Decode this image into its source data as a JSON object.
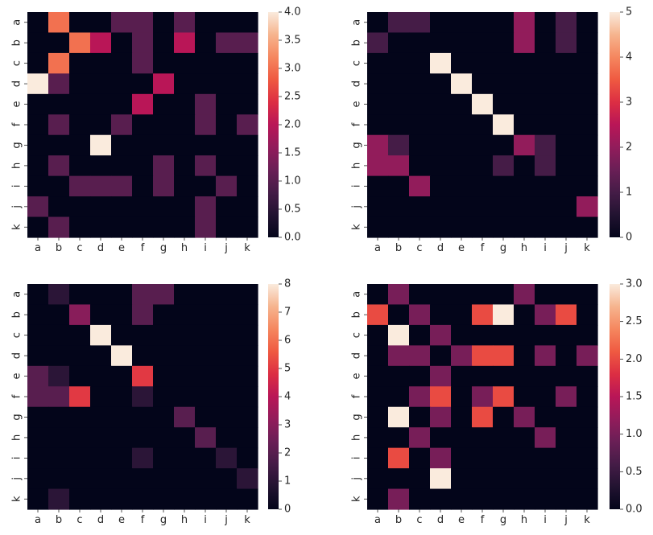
{
  "chart_data": [
    {
      "type": "heatmap",
      "row_labels": [
        "a",
        "b",
        "c",
        "d",
        "e",
        "f",
        "g",
        "h",
        "i",
        "j",
        "k"
      ],
      "col_labels": [
        "a",
        "b",
        "c",
        "d",
        "e",
        "f",
        "g",
        "h",
        "i",
        "j",
        "k"
      ],
      "vmin": 0,
      "vmax": 4,
      "colorbar_ticks": [
        "0.0",
        "0.5",
        "1.0",
        "1.5",
        "2.0",
        "2.5",
        "3.0",
        "3.5",
        "4.0"
      ],
      "values": [
        [
          0,
          3,
          0,
          0,
          1,
          1,
          0,
          1,
          0,
          0,
          0
        ],
        [
          0,
          0,
          3,
          2,
          0,
          1,
          0,
          2,
          0,
          1,
          1
        ],
        [
          0,
          3,
          0,
          0,
          0,
          1,
          0,
          0,
          0,
          0,
          0
        ],
        [
          4,
          1,
          0,
          0,
          0,
          0,
          2,
          0,
          0,
          0,
          0
        ],
        [
          0,
          0,
          0,
          0,
          0,
          2,
          0,
          0,
          1,
          0,
          0
        ],
        [
          0,
          1,
          0,
          0,
          1,
          0,
          0,
          0,
          1,
          0,
          1
        ],
        [
          0,
          0,
          0,
          4,
          0,
          0,
          0,
          0,
          0,
          0,
          0
        ],
        [
          0,
          1,
          0,
          0,
          0,
          0,
          1,
          0,
          1,
          0,
          0
        ],
        [
          0,
          0,
          1,
          1,
          1,
          0,
          1,
          0,
          0,
          1,
          0
        ],
        [
          1,
          0,
          0,
          0,
          0,
          0,
          0,
          0,
          1,
          0,
          0
        ],
        [
          0,
          1,
          0,
          0,
          0,
          0,
          0,
          0,
          1,
          0,
          0
        ]
      ]
    },
    {
      "type": "heatmap",
      "row_labels": [
        "a",
        "b",
        "c",
        "d",
        "e",
        "f",
        "g",
        "h",
        "i",
        "j",
        "k"
      ],
      "col_labels": [
        "a",
        "b",
        "c",
        "d",
        "e",
        "f",
        "g",
        "h",
        "i",
        "j",
        "k"
      ],
      "vmin": 0,
      "vmax": 5,
      "colorbar_ticks": [
        "0",
        "1",
        "2",
        "3",
        "4",
        "5"
      ],
      "values": [
        [
          0,
          1,
          1,
          0,
          0,
          0,
          0,
          2,
          0,
          1,
          0
        ],
        [
          1,
          0,
          0,
          0,
          0,
          0,
          0,
          2,
          0,
          1,
          0
        ],
        [
          0,
          0,
          0,
          5,
          0,
          0,
          0,
          0,
          0,
          0,
          0
        ],
        [
          0,
          0,
          0,
          0,
          5,
          0,
          0,
          0,
          0,
          0,
          0
        ],
        [
          0,
          0,
          0,
          0,
          0,
          5,
          0,
          0,
          0,
          0,
          0
        ],
        [
          0,
          0,
          0,
          0,
          0,
          0,
          5,
          0,
          0,
          0,
          0
        ],
        [
          2,
          1,
          0,
          0,
          0,
          0,
          0,
          2,
          1,
          0,
          0
        ],
        [
          2,
          2,
          0,
          0,
          0,
          0,
          1,
          0,
          1,
          0,
          0
        ],
        [
          0,
          0,
          2,
          0,
          0,
          0,
          0,
          0,
          0,
          0,
          0
        ],
        [
          0,
          0,
          0,
          0,
          0,
          0,
          0,
          0,
          0,
          0,
          2
        ],
        [
          0,
          0,
          0,
          0,
          0,
          0,
          0,
          0,
          0,
          0,
          0
        ]
      ]
    },
    {
      "type": "heatmap",
      "row_labels": [
        "a",
        "b",
        "c",
        "d",
        "e",
        "f",
        "g",
        "h",
        "i",
        "j",
        "k"
      ],
      "col_labels": [
        "a",
        "b",
        "c",
        "d",
        "e",
        "f",
        "g",
        "h",
        "i",
        "j",
        "k"
      ],
      "vmin": 0,
      "vmax": 8,
      "colorbar_ticks": [
        "0",
        "1",
        "2",
        "3",
        "4",
        "5",
        "6",
        "7",
        "8"
      ],
      "values": [
        [
          0,
          1,
          0,
          0,
          0,
          2,
          2,
          0,
          0,
          0,
          0
        ],
        [
          0,
          0,
          3,
          0,
          0,
          2,
          0,
          0,
          0,
          0,
          0
        ],
        [
          0,
          0,
          0,
          8,
          0,
          0,
          0,
          0,
          0,
          0,
          0
        ],
        [
          0,
          0,
          0,
          0,
          8,
          0,
          0,
          0,
          0,
          0,
          0
        ],
        [
          2,
          1,
          0,
          0,
          0,
          5,
          0,
          0,
          0,
          0,
          0
        ],
        [
          2,
          2,
          5,
          0,
          0,
          1,
          0,
          0,
          0,
          0,
          0
        ],
        [
          0,
          0,
          0,
          0,
          0,
          0,
          0,
          2,
          0,
          0,
          0
        ],
        [
          0,
          0,
          0,
          0,
          0,
          0,
          0,
          0,
          2,
          0,
          0
        ],
        [
          0,
          0,
          0,
          0,
          0,
          1,
          0,
          0,
          0,
          1,
          0
        ],
        [
          0,
          0,
          0,
          0,
          0,
          0,
          0,
          0,
          0,
          0,
          1
        ],
        [
          0,
          1,
          0,
          0,
          0,
          0,
          0,
          0,
          0,
          0,
          0
        ]
      ]
    },
    {
      "type": "heatmap",
      "row_labels": [
        "a",
        "b",
        "c",
        "d",
        "e",
        "f",
        "g",
        "h",
        "i",
        "j",
        "k"
      ],
      "col_labels": [
        "a",
        "b",
        "c",
        "d",
        "e",
        "f",
        "g",
        "h",
        "i",
        "j",
        "k"
      ],
      "vmin": 0,
      "vmax": 3,
      "colorbar_ticks": [
        "0.0",
        "0.5",
        "1.0",
        "1.5",
        "2.0",
        "2.5",
        "3.0"
      ],
      "values": [
        [
          0,
          1,
          0,
          0,
          0,
          0,
          0,
          1,
          0,
          0,
          0
        ],
        [
          2,
          0,
          1,
          0,
          0,
          2,
          3,
          0,
          1,
          2,
          0
        ],
        [
          0,
          3,
          0,
          1,
          0,
          0,
          0,
          0,
          0,
          0,
          0
        ],
        [
          0,
          1,
          1,
          0,
          1,
          2,
          2,
          0,
          1,
          0,
          1
        ],
        [
          0,
          0,
          0,
          1,
          0,
          0,
          0,
          0,
          0,
          0,
          0
        ],
        [
          0,
          0,
          1,
          2,
          0,
          1,
          2,
          0,
          0,
          1,
          0
        ],
        [
          0,
          3,
          0,
          1,
          0,
          2,
          0,
          1,
          0,
          0,
          0
        ],
        [
          0,
          0,
          1,
          0,
          0,
          0,
          0,
          0,
          1,
          0,
          0
        ],
        [
          0,
          2,
          0,
          1,
          0,
          0,
          0,
          0,
          0,
          0,
          0
        ],
        [
          0,
          0,
          0,
          3,
          0,
          0,
          0,
          0,
          0,
          0,
          0
        ],
        [
          0,
          1,
          0,
          0,
          0,
          0,
          0,
          0,
          0,
          0,
          0
        ]
      ]
    }
  ]
}
